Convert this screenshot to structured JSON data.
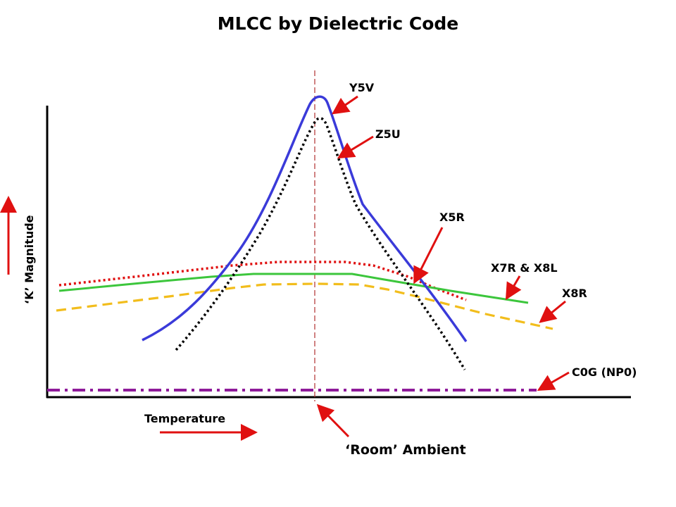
{
  "title": "MLCC by Dielectric Code",
  "axes": {
    "y_label": "‘K’ Magnitude",
    "x_label": "Temperature",
    "center_label": "‘Room’ Ambient"
  },
  "curves": [
    {
      "id": "y5v",
      "label": "Y5V",
      "color": "#3a3ad9",
      "style": "solid"
    },
    {
      "id": "z5u",
      "label": "Z5U",
      "color": "#000000",
      "style": "dotted"
    },
    {
      "id": "x5r",
      "label": "X5R",
      "color": "#e01010",
      "style": "dotted"
    },
    {
      "id": "x7r",
      "label": "X7R & X8L",
      "color": "#3cc63c",
      "style": "solid"
    },
    {
      "id": "x8r",
      "label": "X8R",
      "color": "#f2bd1c",
      "style": "dashed"
    },
    {
      "id": "c0g",
      "label": "C0G (NP0)",
      "color": "#8e1a9a",
      "style": "dash-dot"
    }
  ],
  "colors": {
    "arrow": "#e01010",
    "axis": "#000000",
    "ambient_line": "#b03030"
  }
}
